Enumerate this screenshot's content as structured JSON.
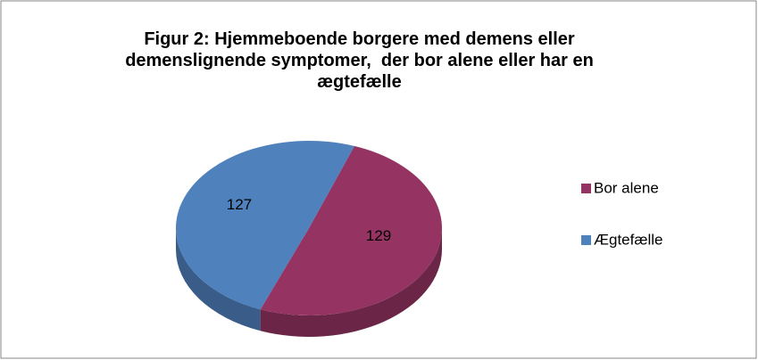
{
  "chart_data": {
    "type": "pie",
    "title": "Figur 2: Hjemmeboende borgere med demens eller demenslignende symptomer,  der bor alene eller har en ægtefælle",
    "categories": [
      "Bor alene",
      "Ægtefælle"
    ],
    "values": [
      129,
      127
    ],
    "colors": [
      "#953463",
      "#4f81bd"
    ],
    "legend": "right"
  }
}
